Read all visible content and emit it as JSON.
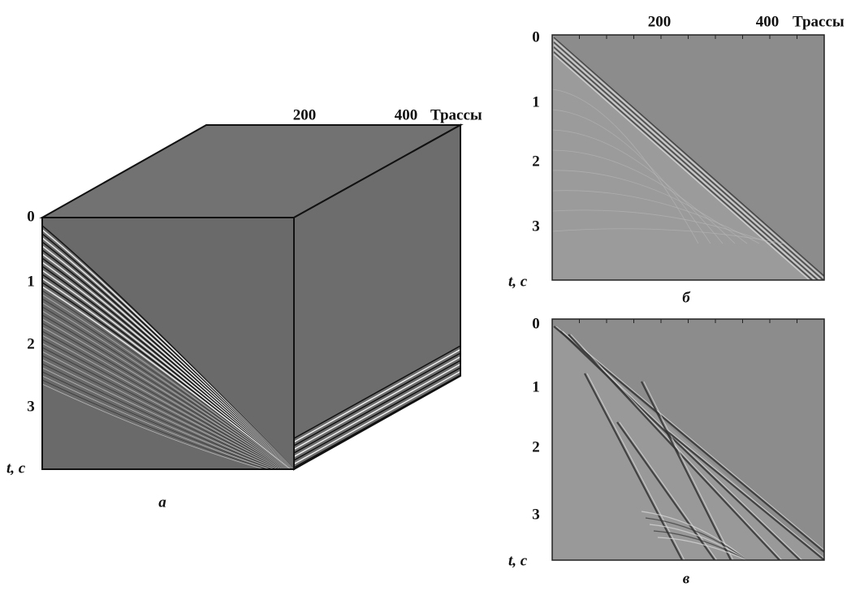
{
  "panel_a": {
    "x_ticks": [
      "200",
      "400"
    ],
    "x_label": "Трассы",
    "y_ticks": [
      "0",
      "1",
      "2",
      "3"
    ],
    "y_label": "t, с",
    "caption": "а"
  },
  "panel_b": {
    "x_ticks": [
      "200",
      "400"
    ],
    "x_label": "Трассы",
    "y_ticks": [
      "0",
      "1",
      "2",
      "3"
    ],
    "y_label": "t, с",
    "caption": "б"
  },
  "panel_c": {
    "y_ticks": [
      "0",
      "1",
      "2",
      "3"
    ],
    "y_label": "t, с",
    "caption": "в"
  }
}
